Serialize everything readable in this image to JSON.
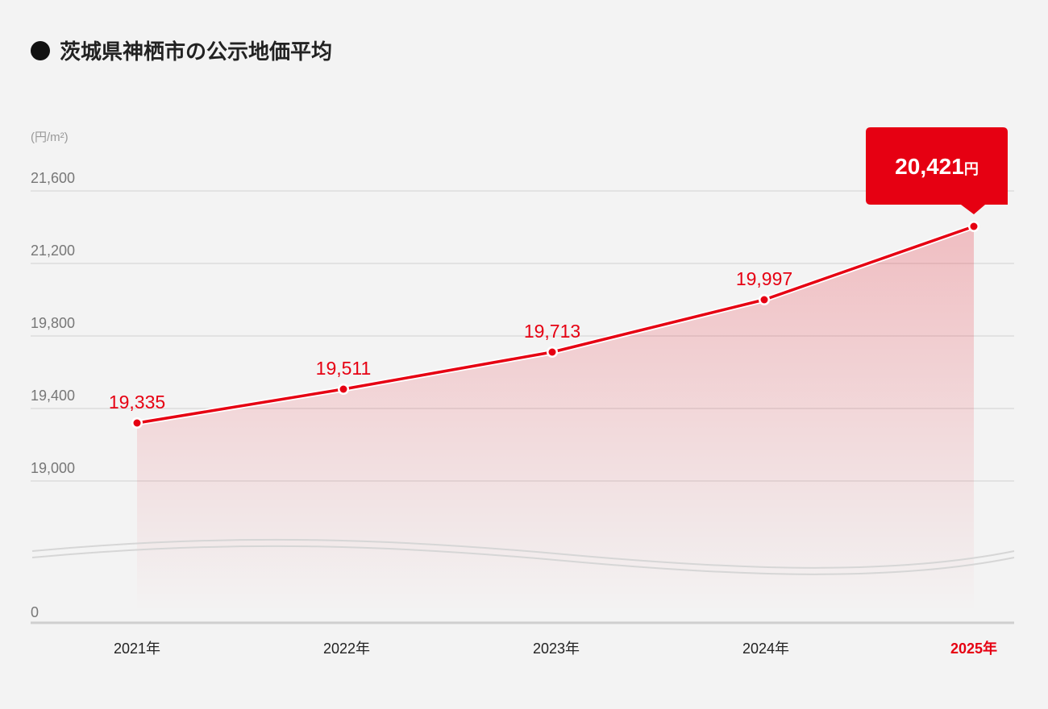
{
  "title": "茨城県神栖市の公示地価平均",
  "colors": {
    "accent": "#e60012",
    "grid": "#d8d8d8",
    "background": "#f3f3f3"
  },
  "chart_data": {
    "type": "area",
    "title": "茨城県神栖市の公示地価平均",
    "unit_label": "(円/m²)",
    "categories": [
      "2021年",
      "2022年",
      "2023年",
      "2024年",
      "2025年"
    ],
    "values": [
      19335,
      19511,
      19713,
      19997,
      20421
    ],
    "value_labels": [
      "19,335",
      "19,511",
      "19,713",
      "19,997",
      "20,421"
    ],
    "y_ticks": [
      19000,
      19400,
      19800,
      21200,
      21600
    ],
    "y_tick_labels": [
      "19,000",
      "19,400",
      "19,800",
      "21,200",
      "21,600"
    ],
    "y_zero_label": "0",
    "axis_break": true,
    "highlight": {
      "index": 4,
      "value_label": "20,421",
      "unit": "円"
    }
  }
}
